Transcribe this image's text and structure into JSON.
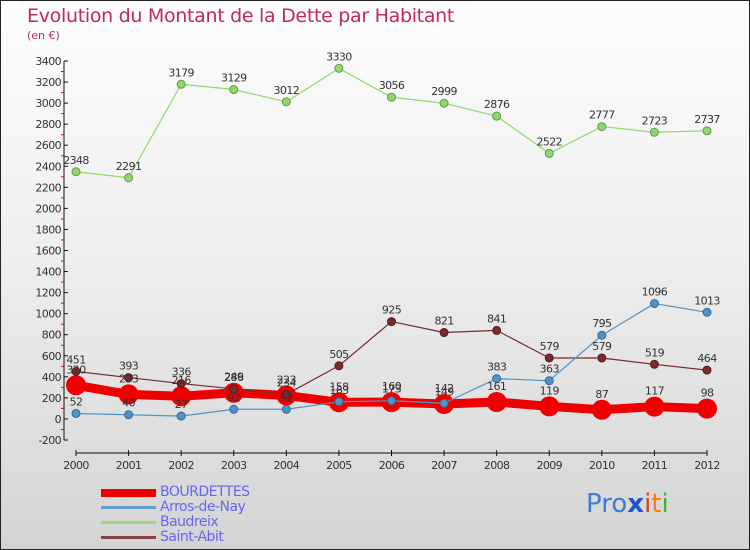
{
  "title": "Evolution du Montant de la Dette par Habitant",
  "subtitle": "(en €)",
  "logo": {
    "text": "Proxiti",
    "letters": [
      {
        "ch": "P",
        "color": "#3a7fd0"
      },
      {
        "ch": "r",
        "color": "#3a7fd0"
      },
      {
        "ch": "o",
        "color": "#3a7fd0"
      },
      {
        "ch": "x",
        "color": "#2255cc"
      },
      {
        "ch": "i",
        "color": "#e04020"
      },
      {
        "ch": "t",
        "color": "#f08010"
      },
      {
        "ch": "i",
        "color": "#40b040"
      }
    ]
  },
  "chart_data": {
    "type": "line",
    "title": "Evolution du Montant de la Dette par Habitant",
    "subtitle": "(en €)",
    "xlabel": "",
    "ylabel": "",
    "x": [
      "2000",
      "2001",
      "2002",
      "2003",
      "2004",
      "2005",
      "2006",
      "2007",
      "2008",
      "2009",
      "2010",
      "2011",
      "2012"
    ],
    "ylim": [
      -200,
      3400
    ],
    "yticks": [
      -200,
      0,
      200,
      400,
      600,
      800,
      1000,
      1200,
      1400,
      1600,
      1800,
      2000,
      2200,
      2400,
      2600,
      2800,
      3000,
      3200,
      3400
    ],
    "grid": false,
    "legend_position": "bottom-left",
    "series": [
      {
        "name": "BOURDETTES",
        "color": "#ee0000",
        "width": "thick",
        "values": [
          320,
          233,
          216,
          249,
          223,
          158,
          160,
          142,
          161,
          119,
          87,
          117,
          98
        ]
      },
      {
        "name": "Arros-de-Nay",
        "color": "#4f94c9",
        "width": "thin",
        "values": [
          52,
          40,
          27,
          92,
          92,
          163,
          173,
          149,
          383,
          363,
          795,
          1096,
          1013
        ]
      },
      {
        "name": "Baudreix",
        "color": "#8fd86a",
        "width": "thin",
        "values": [
          2348,
          2291,
          3179,
          3129,
          3012,
          3330,
          3056,
          2999,
          2876,
          2522,
          2777,
          2723,
          2737
        ]
      },
      {
        "name": "Saint-Abit",
        "color": "#7a2a2a",
        "width": "thin",
        "values": [
          451,
          393,
          336,
          286,
          234,
          505,
          925,
          821,
          841,
          579,
          579,
          519,
          464
        ]
      }
    ]
  }
}
